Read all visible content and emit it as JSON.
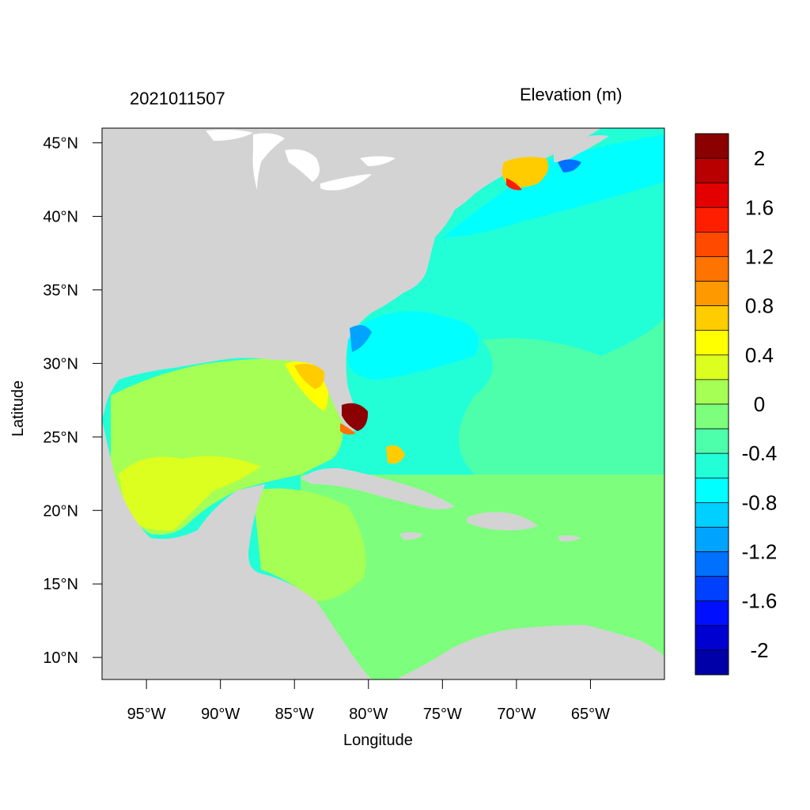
{
  "header": {
    "left_title": "2021011507",
    "right_title": "Elevation (m)"
  },
  "axes": {
    "xlabel": "Longitude",
    "ylabel": "Latitude",
    "x_ticks": [
      "95°W",
      "90°W",
      "85°W",
      "80°W",
      "75°W",
      "70°W",
      "65°W"
    ],
    "y_ticks": [
      "45°N",
      "40°N",
      "35°N",
      "30°N",
      "25°N",
      "20°N",
      "15°N",
      "10°N"
    ],
    "x_tick_values": [
      -95,
      -90,
      -85,
      -80,
      -75,
      -70,
      -65
    ],
    "y_tick_values": [
      45,
      40,
      35,
      30,
      25,
      20,
      15,
      10
    ],
    "lon_range": [
      -98,
      -60
    ],
    "lat_range": [
      8.5,
      46
    ]
  },
  "colorbar": {
    "labels": [
      "2",
      "1.6",
      "1.2",
      "0.8",
      "0.4",
      "0",
      "-0.4",
      "-0.8",
      "-1.2",
      "-1.6",
      "-2"
    ],
    "colors": [
      "#8b0000",
      "#b80000",
      "#e30000",
      "#ff1e00",
      "#ff4a00",
      "#ff7300",
      "#ff9900",
      "#ffcc00",
      "#ffff00",
      "#dcff1f",
      "#a6ff55",
      "#7dff7d",
      "#4dffaa",
      "#22ffd7",
      "#00ffff",
      "#00d0ff",
      "#00a4ff",
      "#0070ff",
      "#0040ff",
      "#0010ff",
      "#0000d0",
      "#0000a8"
    ]
  },
  "map": {
    "land_color": "#d3d3d3",
    "lake_color": "#ffffff",
    "ocean_colors": {
      "atlantic": "#22ffd7",
      "gulf": "#a6ff55",
      "caribbean": "#7dff7d",
      "low": "#00ffff",
      "high": "#8b0000",
      "mid_high": "#ffcc00",
      "yellow": "#dcff1f"
    }
  }
}
